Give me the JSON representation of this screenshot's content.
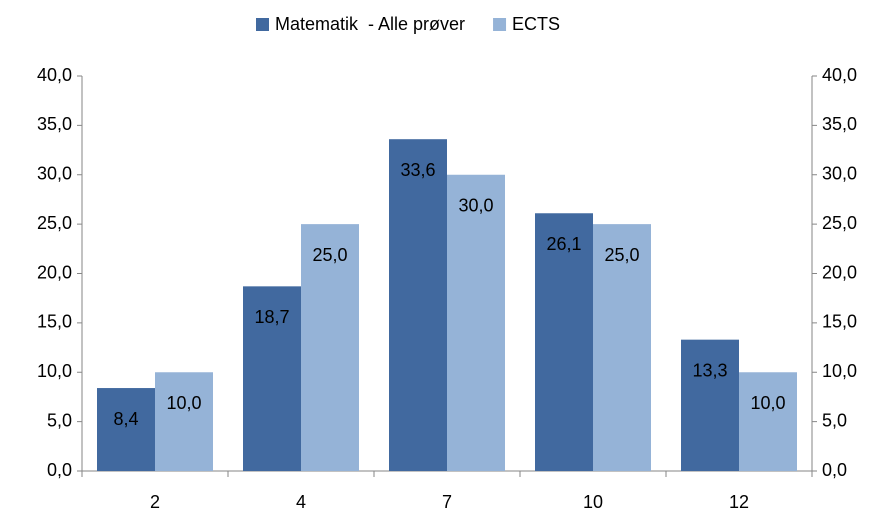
{
  "chart_data": {
    "type": "bar",
    "categories": [
      "2",
      "4",
      "7",
      "10",
      "12"
    ],
    "series": [
      {
        "name": "Matematik  - Alle prøver",
        "color": "#41699f",
        "values": [
          8.4,
          18.7,
          33.6,
          26.1,
          13.3
        ],
        "value_labels": [
          "8,4",
          "18,7",
          "33,6",
          "26,1",
          "13,3"
        ]
      },
      {
        "name": "ECTS",
        "color": "#95b3d7",
        "values": [
          10.0,
          25.0,
          30.0,
          25.0,
          10.0
        ],
        "value_labels": [
          "10,0",
          "25,0",
          "30,0",
          "25,0",
          "10,0"
        ]
      }
    ],
    "ylim": [
      0,
      40
    ],
    "yticks": [
      {
        "value": 0,
        "label": "0,0"
      },
      {
        "value": 5,
        "label": "5,0"
      },
      {
        "value": 10,
        "label": "10,0"
      },
      {
        "value": 15,
        "label": "15,0"
      },
      {
        "value": 20,
        "label": "20,0"
      },
      {
        "value": 25,
        "label": "25,0"
      },
      {
        "value": 30,
        "label": "30,0"
      },
      {
        "value": 35,
        "label": "35,0"
      },
      {
        "value": 40,
        "label": "40,0"
      }
    ],
    "y2lim": [
      0,
      40
    ],
    "y2ticks": [
      {
        "value": 0,
        "label": "0,0"
      },
      {
        "value": 5,
        "label": "5,0"
      },
      {
        "value": 10,
        "label": "10,0"
      },
      {
        "value": 15,
        "label": "15,0"
      },
      {
        "value": 20,
        "label": "20,0"
      },
      {
        "value": 25,
        "label": "25,0"
      },
      {
        "value": 30,
        "label": "30,0"
      },
      {
        "value": 35,
        "label": "35,0"
      },
      {
        "value": 40,
        "label": "40,0"
      }
    ],
    "grid": false,
    "legend": "top"
  }
}
